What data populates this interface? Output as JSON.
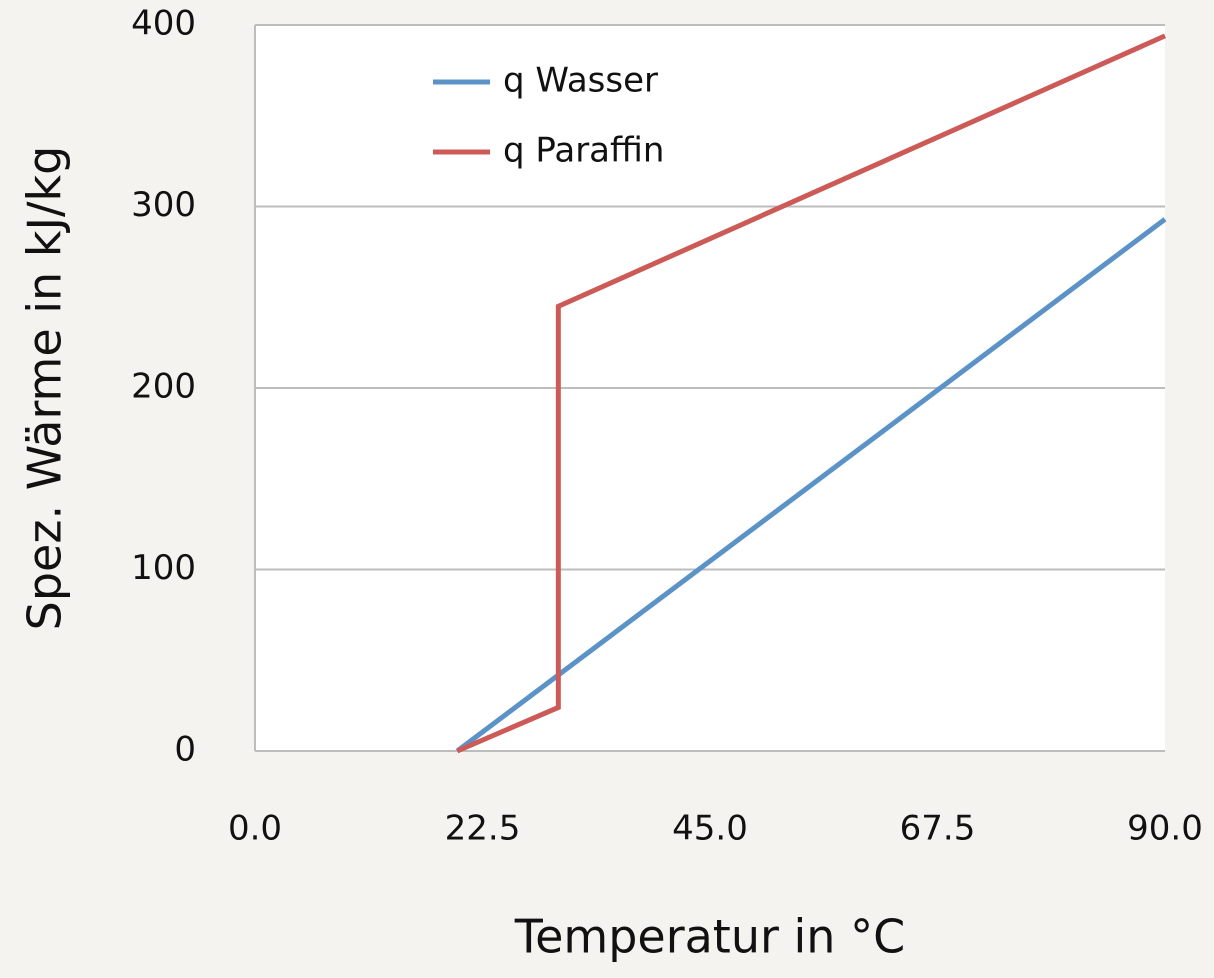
{
  "chart_data": {
    "type": "line",
    "xlabel": "Temperatur in °C",
    "ylabel": "Spez. Wärme in kJ/kg",
    "series": [
      {
        "name": "q Wasser",
        "color": "#5b93c8",
        "x": [
          20,
          90
        ],
        "values": [
          0,
          293
        ]
      },
      {
        "name": "q Paraffin",
        "color": "#cc5b57",
        "x": [
          20,
          30,
          30,
          90
        ],
        "values": [
          0,
          24,
          245,
          394
        ]
      }
    ],
    "xlim": [
      0,
      90
    ],
    "xticks": [
      {
        "value": 0,
        "label": "0.0"
      },
      22.5,
      {
        "value": 45,
        "label": "45.0"
      },
      67.5,
      {
        "value": 90,
        "label": "90.0"
      }
    ],
    "ylim": [
      0,
      400
    ],
    "yticks": [
      0,
      100,
      200,
      300,
      400
    ],
    "grid": true,
    "legend": "upper left"
  }
}
